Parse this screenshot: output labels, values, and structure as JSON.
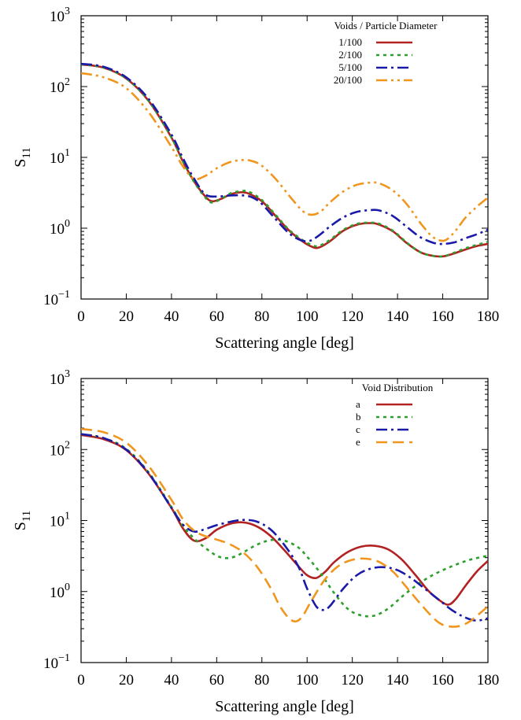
{
  "chart_data": [
    {
      "type": "line",
      "xlabel": "Scattering angle [deg]",
      "ylabel": "S11",
      "xlim": [
        0,
        180
      ],
      "ylim": [
        0.1,
        1000
      ],
      "yscale": "log",
      "xticks": [
        0,
        20,
        40,
        60,
        80,
        100,
        120,
        140,
        160,
        180
      ],
      "yticks": [
        0.1,
        1,
        10,
        100,
        1000
      ],
      "ytick_labels": [
        {
          "base": "10",
          "exp": "−1"
        },
        {
          "base": "10",
          "exp": "0"
        },
        {
          "base": "10",
          "exp": "1"
        },
        {
          "base": "10",
          "exp": "2"
        },
        {
          "base": "10",
          "exp": "3"
        }
      ],
      "grid": false,
      "legend_title": "Voids / Particle Diameter",
      "legend_position": "top-right",
      "series": [
        {
          "name": "1/100",
          "color": "#b22222",
          "dash": "solid",
          "x": [
            0,
            10,
            20,
            30,
            40,
            45,
            50,
            55,
            58,
            62,
            66,
            70,
            74,
            80,
            86,
            92,
            98,
            102,
            105,
            110,
            116,
            122,
            128,
            132,
            138,
            144,
            150,
            155,
            160,
            165,
            170,
            175,
            180
          ],
          "y": [
            205,
            185,
            130,
            62,
            19,
            8.8,
            4.6,
            2.8,
            2.4,
            2.6,
            3.0,
            3.2,
            3.1,
            2.4,
            1.5,
            0.93,
            0.65,
            0.55,
            0.53,
            0.65,
            0.92,
            1.12,
            1.18,
            1.12,
            0.9,
            0.62,
            0.46,
            0.41,
            0.4,
            0.44,
            0.5,
            0.56,
            0.6
          ]
        },
        {
          "name": "2/100",
          "color": "#2ca02c",
          "dash": "dotted",
          "x": [
            0,
            10,
            20,
            30,
            40,
            45,
            50,
            55,
            58,
            62,
            66,
            70,
            74,
            80,
            86,
            92,
            98,
            102,
            105,
            110,
            116,
            122,
            128,
            132,
            138,
            144,
            150,
            155,
            160,
            165,
            170,
            175,
            180
          ],
          "y": [
            205,
            185,
            130,
            62,
            19,
            8.8,
            4.5,
            2.7,
            2.3,
            2.6,
            3.1,
            3.3,
            3.3,
            2.5,
            1.55,
            0.95,
            0.68,
            0.58,
            0.56,
            0.68,
            0.95,
            1.15,
            1.2,
            1.15,
            0.92,
            0.63,
            0.46,
            0.41,
            0.4,
            0.45,
            0.52,
            0.58,
            0.64
          ]
        },
        {
          "name": "5/100",
          "color": "#1a1aa8",
          "dash": "dashdot",
          "x": [
            0,
            10,
            20,
            30,
            40,
            45,
            50,
            55,
            60,
            66,
            72,
            76,
            80,
            86,
            92,
            97,
            101,
            105,
            110,
            116,
            122,
            128,
            132,
            138,
            144,
            150,
            156,
            160,
            165,
            170,
            175,
            180
          ],
          "y": [
            210,
            190,
            135,
            66,
            21,
            9.8,
            5.0,
            3.0,
            2.8,
            2.9,
            2.9,
            2.7,
            2.2,
            1.35,
            0.85,
            0.68,
            0.66,
            0.78,
            1.05,
            1.42,
            1.7,
            1.8,
            1.78,
            1.48,
            1.05,
            0.75,
            0.62,
            0.6,
            0.63,
            0.72,
            0.82,
            0.95
          ]
        },
        {
          "name": "20/100",
          "color": "#f0961e",
          "dash": "dashdotdot",
          "x": [
            0,
            10,
            20,
            30,
            40,
            45,
            50,
            55,
            60,
            66,
            72,
            76,
            80,
            86,
            92,
            98,
            102,
            106,
            110,
            116,
            122,
            128,
            132,
            138,
            144,
            150,
            155,
            159,
            162,
            166,
            170,
            175,
            180
          ],
          "y": [
            155,
            135,
            95,
            43,
            14,
            7.5,
            5.0,
            5.5,
            7.0,
            8.6,
            9.2,
            8.8,
            7.6,
            5.0,
            2.9,
            1.75,
            1.55,
            1.72,
            2.3,
            3.3,
            4.1,
            4.4,
            4.3,
            3.4,
            2.2,
            1.2,
            0.78,
            0.67,
            0.7,
            0.95,
            1.4,
            2.0,
            2.7
          ]
        }
      ]
    },
    {
      "type": "line",
      "xlabel": "Scattering angle [deg]",
      "ylabel": "S11",
      "xlim": [
        0,
        180
      ],
      "ylim": [
        0.1,
        1000
      ],
      "yscale": "log",
      "xticks": [
        0,
        20,
        40,
        60,
        80,
        100,
        120,
        140,
        160,
        180
      ],
      "yticks": [
        0.1,
        1,
        10,
        100,
        1000
      ],
      "ytick_labels": [
        {
          "base": "10",
          "exp": "−1"
        },
        {
          "base": "10",
          "exp": "0"
        },
        {
          "base": "10",
          "exp": "1"
        },
        {
          "base": "10",
          "exp": "2"
        },
        {
          "base": "10",
          "exp": "3"
        }
      ],
      "grid": false,
      "legend_title": "Void Distribution",
      "legend_position": "top-right",
      "series": [
        {
          "name": "a",
          "color": "#b22222",
          "dash": "solid",
          "x": [
            0,
            10,
            20,
            30,
            40,
            45,
            50,
            55,
            60,
            66,
            72,
            78,
            84,
            90,
            96,
            100,
            104,
            108,
            112,
            118,
            124,
            130,
            136,
            142,
            148,
            154,
            160,
            163,
            166,
            170,
            175,
            180
          ],
          "y": [
            160,
            140,
            98,
            45,
            15,
            7.8,
            5.2,
            5.6,
            7.4,
            9.0,
            9.4,
            8.2,
            6.0,
            3.8,
            2.3,
            1.7,
            1.55,
            1.9,
            2.6,
            3.6,
            4.3,
            4.4,
            3.9,
            2.8,
            1.7,
            1.0,
            0.7,
            0.66,
            0.8,
            1.2,
            1.9,
            2.7
          ]
        },
        {
          "name": "b",
          "color": "#2ca02c",
          "dash": "dotted",
          "x": [
            0,
            10,
            20,
            30,
            40,
            45,
            50,
            55,
            60,
            64,
            68,
            72,
            78,
            84,
            90,
            96,
            100,
            106,
            112,
            118,
            124,
            130,
            136,
            142,
            148,
            154,
            160,
            166,
            172,
            180
          ],
          "y": [
            165,
            145,
            102,
            47,
            15.5,
            8.5,
            5.6,
            4.1,
            3.2,
            2.95,
            3.1,
            3.6,
            4.6,
            5.3,
            5.2,
            4.2,
            3.1,
            1.8,
            0.95,
            0.57,
            0.46,
            0.46,
            0.58,
            0.85,
            1.2,
            1.6,
            2.0,
            2.4,
            2.8,
            3.2
          ]
        },
        {
          "name": "c",
          "color": "#1a1aa8",
          "dash": "dashdot",
          "x": [
            0,
            10,
            20,
            30,
            40,
            45,
            50,
            55,
            60,
            66,
            72,
            78,
            84,
            90,
            96,
            100,
            104,
            107,
            110,
            116,
            122,
            128,
            134,
            140,
            146,
            152,
            158,
            164,
            170,
            175,
            180
          ],
          "y": [
            165,
            145,
            100,
            46,
            15,
            8.8,
            7.0,
            7.6,
            8.6,
            9.6,
            10.2,
            9.6,
            7.4,
            4.5,
            2.3,
            1.1,
            0.62,
            0.55,
            0.62,
            1.1,
            1.7,
            2.1,
            2.2,
            2.0,
            1.55,
            1.1,
            0.78,
            0.55,
            0.43,
            0.39,
            0.42
          ]
        },
        {
          "name": "e",
          "color": "#f0961e",
          "dash": "dashed",
          "x": [
            0,
            10,
            20,
            30,
            40,
            45,
            50,
            55,
            60,
            66,
            72,
            78,
            84,
            88,
            92,
            95,
            98,
            102,
            108,
            114,
            120,
            126,
            132,
            138,
            144,
            150,
            156,
            160,
            164,
            168,
            172,
            176,
            180
          ],
          "y": [
            195,
            175,
            125,
            58,
            19.5,
            10.5,
            7.2,
            6.0,
            5.4,
            4.6,
            3.5,
            2.2,
            1.1,
            0.62,
            0.42,
            0.38,
            0.45,
            0.75,
            1.5,
            2.3,
            2.8,
            2.9,
            2.6,
            1.9,
            1.15,
            0.68,
            0.42,
            0.34,
            0.32,
            0.33,
            0.38,
            0.48,
            0.62
          ]
        }
      ]
    }
  ]
}
